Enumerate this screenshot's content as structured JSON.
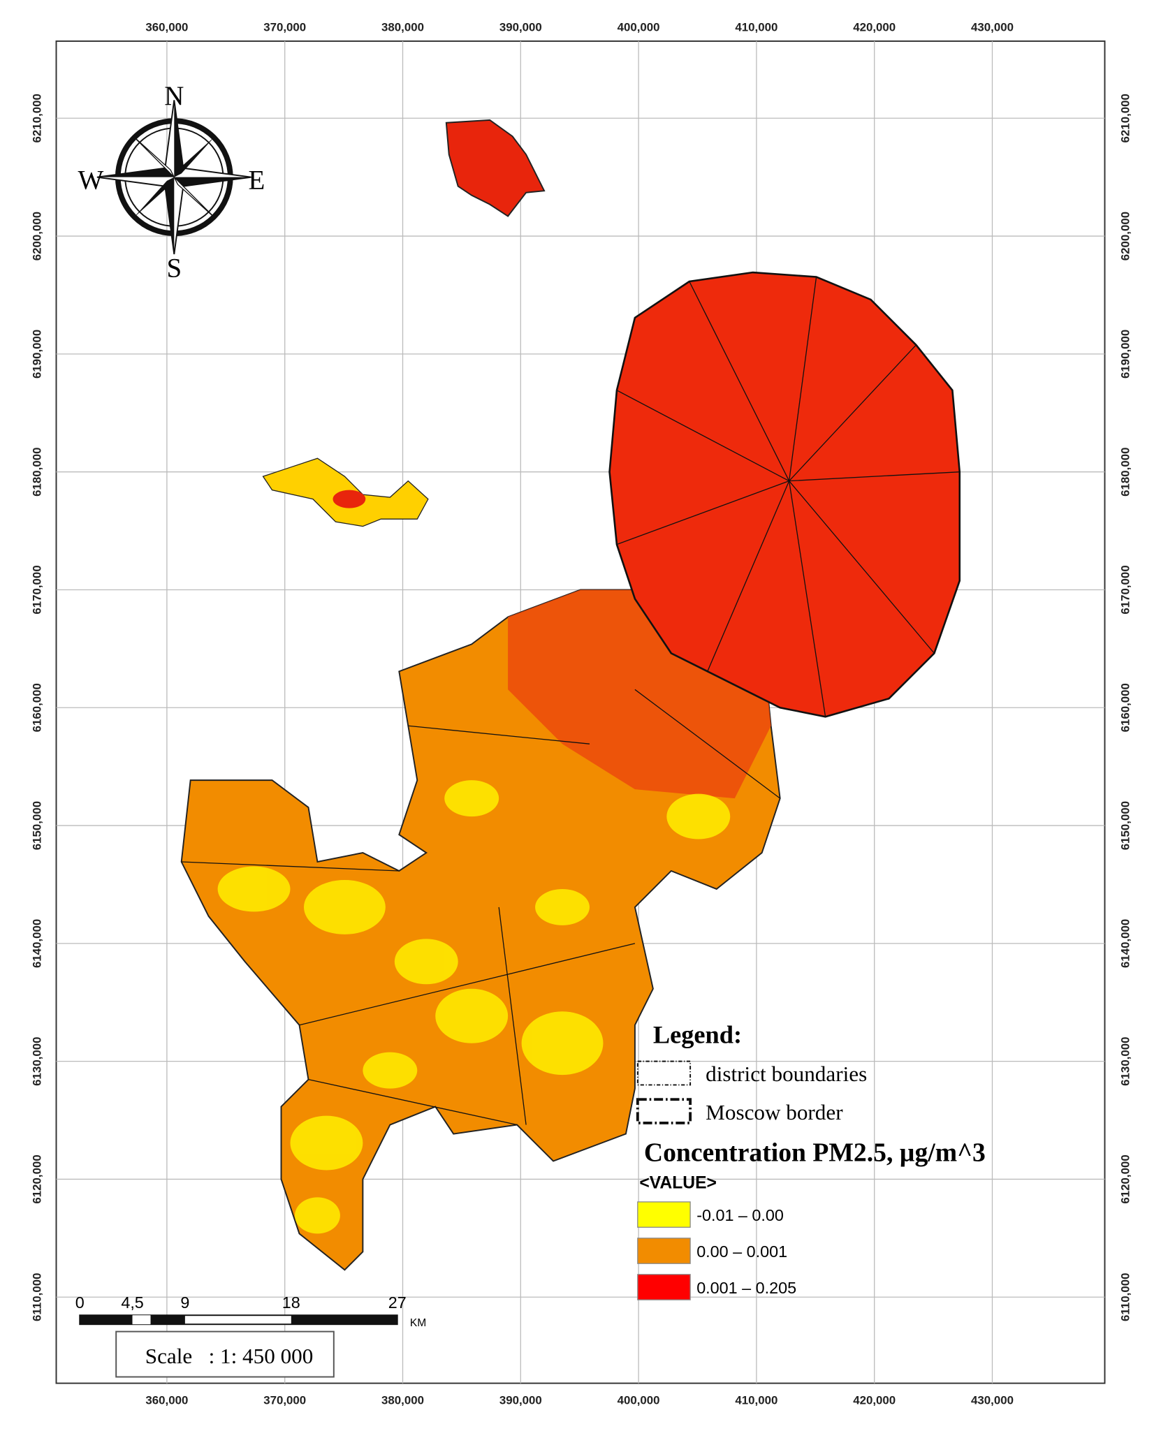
{
  "grid": {
    "x_labels": [
      "360,000",
      "370,000",
      "380,000",
      "390,000",
      "400,000",
      "410,000",
      "420,000",
      "430,000"
    ],
    "y_labels": [
      "6210,000",
      "6200,000",
      "6190,000",
      "6180,000",
      "6170,000",
      "6160,000",
      "6150,000",
      "6140,000",
      "6130,000",
      "6120,000",
      "6110,000"
    ]
  },
  "compass": {
    "north": "N",
    "south": "S",
    "west": "W",
    "east": "E"
  },
  "legend": {
    "title": "Legend:",
    "items": [
      {
        "label": "district boundaries"
      },
      {
        "label": "Moscow border"
      }
    ],
    "concentration_title": "Concentration PM2.5, µg/m^3",
    "value_field": "<VALUE>",
    "classes": [
      {
        "label": "-0.01 – 0.00",
        "color": "#ffff00"
      },
      {
        "label": "0.00 – 0.001",
        "color": "#f28c00"
      },
      {
        "label": "0.001 – 0.205",
        "color": "#ff0000"
      }
    ]
  },
  "scale_bar": {
    "labels": [
      "0",
      "4,5",
      "9",
      "18",
      "27"
    ],
    "unit": "KM",
    "scale_text": "Scale   : 1: 450 000"
  }
}
